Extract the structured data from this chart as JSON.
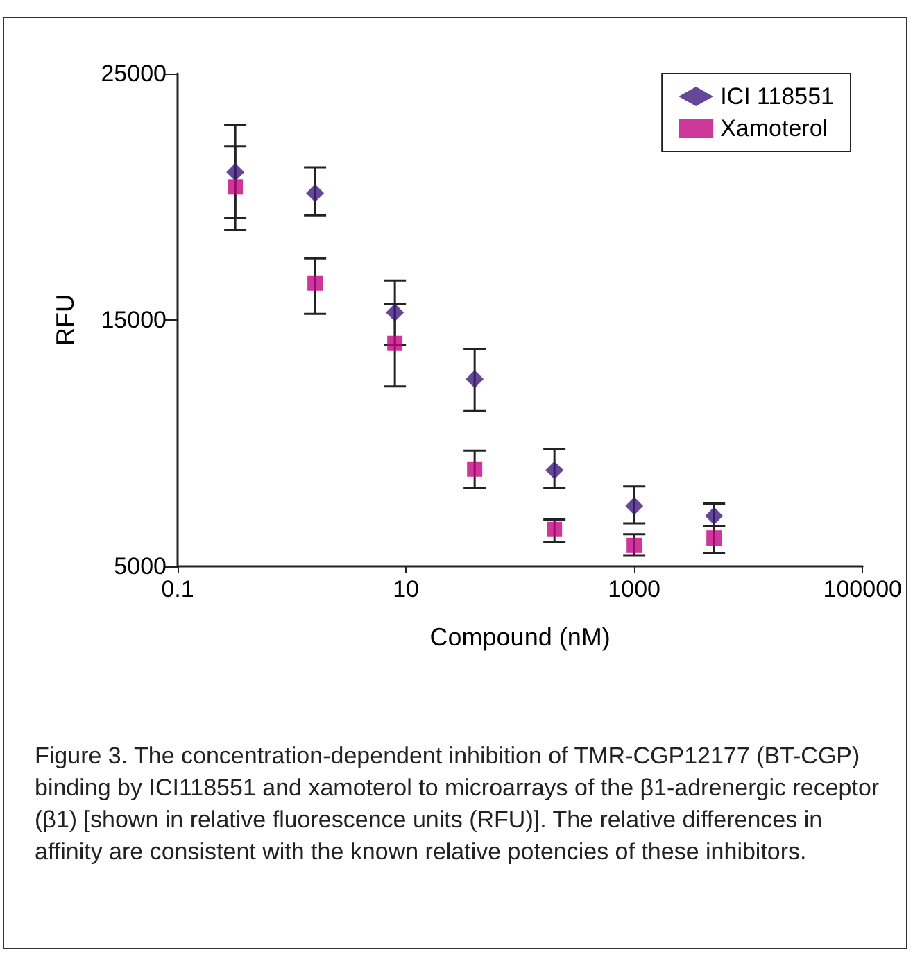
{
  "chart_data": {
    "type": "scatter",
    "xlabel": "Compound (nM)",
    "ylabel": "RFU",
    "log": "x",
    "xlim": [
      0.1,
      100000
    ],
    "xticks": [
      0.1,
      10,
      1000,
      100000
    ],
    "ylim": [
      5000,
      25000
    ],
    "yticks": [
      5000,
      15000,
      25000
    ],
    "grid": false,
    "legend": "top right",
    "x": [
      0.32,
      1.6,
      8,
      40,
      200,
      1000,
      5000
    ],
    "series": [
      {
        "name": "ICI 118551",
        "color": "#3d1a7a",
        "marker": "diamond",
        "values": [
          21000,
          20150,
          15300,
          12600,
          8900,
          7450,
          7050
        ],
        "errors": [
          [
            19150,
            22900
          ],
          [
            19250,
            21200
          ],
          [
            14000,
            16600
          ],
          [
            11300,
            13800
          ],
          [
            8200,
            9750
          ],
          [
            6750,
            8250
          ],
          [
            6650,
            7550
          ]
        ]
      },
      {
        "name": "Xamoterol",
        "color": "#c0057f",
        "marker": "square",
        "values": [
          20400,
          16500,
          14050,
          8950,
          6500,
          5850,
          6150
        ],
        "errors": [
          [
            18650,
            22050
          ],
          [
            15250,
            17500
          ],
          [
            12300,
            15650
          ],
          [
            8200,
            9700
          ],
          [
            6000,
            6900
          ],
          [
            5450,
            6300
          ],
          [
            5550,
            6650
          ]
        ]
      }
    ],
    "annotations": [
      "Figure 3. The concentration-dependent inhibition of TMR-CGP12177 (BT-CGP) binding by ICI118551 and xamoterol to microarrays of the β1-adrenergic receptor (β1) [shown in relative fluorescence units (RFU)]. The relative differences in affinity are consistent with the known relative potencies of these inhibitors."
    ]
  }
}
